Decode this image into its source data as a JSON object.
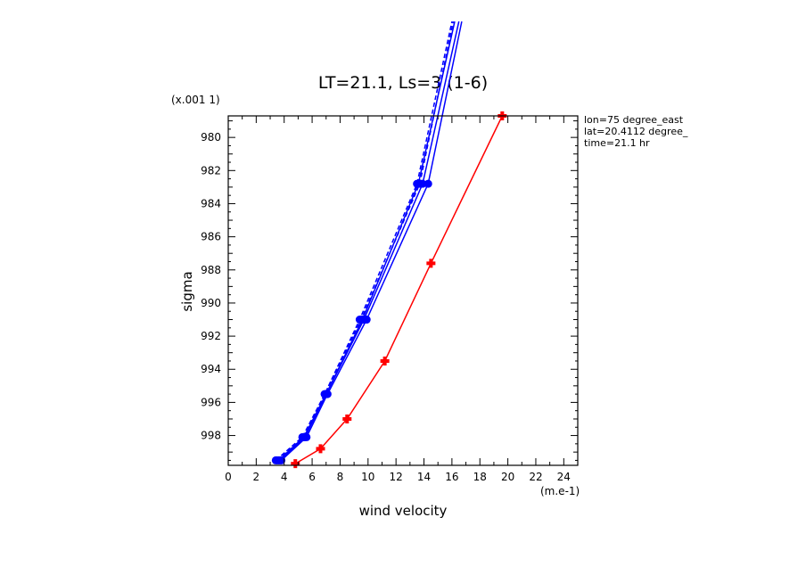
{
  "chart_data": {
    "type": "line",
    "title": "LT=21.1, Ls=3 (1-6)",
    "xlabel": "wind velocity",
    "ylabel": "sigma",
    "x_unit": "(m.e-1)",
    "y_unit": "(x.001 1)",
    "xlim": [
      0,
      25
    ],
    "ylim": [
      999.8,
      978.7
    ],
    "x_ticks": [
      "0",
      "2",
      "4",
      "6",
      "8",
      "10",
      "12",
      "14",
      "16",
      "18",
      "20",
      "22",
      "24"
    ],
    "y_ticks": [
      "980",
      "982",
      "984",
      "986",
      "988",
      "990",
      "992",
      "994",
      "996",
      "998"
    ],
    "grid": false,
    "info": [
      "lon=75 degree_east",
      "lat=20.4112 degree_",
      "time=21.1 hr"
    ],
    "series": [
      {
        "color": "#ff0000",
        "dash": "solid",
        "x": [
          4.8,
          6.6,
          8.5,
          11.2,
          14.5,
          19.6
        ],
        "y": [
          999.7,
          998.8,
          997.0,
          993.5,
          987.6,
          978.7
        ]
      },
      {
        "color": "#0000ff",
        "dash": "solid",
        "x": [
          3.8,
          5.6,
          7.1,
          9.9,
          14.3,
          16.7
        ],
        "y": [
          999.5,
          998.1,
          995.5,
          991.0,
          982.8,
          973.0
        ]
      },
      {
        "color": "#0000ff",
        "dash": "solid",
        "x": [
          3.6,
          5.4,
          7.0,
          9.6,
          13.6,
          16.2
        ],
        "y": [
          999.5,
          998.1,
          995.5,
          991.0,
          982.8,
          973.0
        ]
      },
      {
        "color": "#0000ff",
        "dash": "dashed",
        "x": [
          3.4,
          5.3,
          6.9,
          9.4,
          13.5,
          16.0
        ],
        "y": [
          999.5,
          998.1,
          995.5,
          991.0,
          982.8,
          973.0
        ]
      },
      {
        "color": "#0000ff",
        "dash": "dashed",
        "x": [
          3.5,
          5.4,
          6.9,
          9.5,
          13.7,
          16.1
        ],
        "y": [
          999.5,
          998.1,
          995.5,
          991.0,
          982.8,
          973.0
        ]
      },
      {
        "color": "#0000ff",
        "dash": "solid",
        "x": [
          3.7,
          5.5,
          7.0,
          9.7,
          13.9,
          16.5
        ],
        "y": [
          999.5,
          998.1,
          995.5,
          991.0,
          982.8,
          973.0
        ]
      }
    ]
  }
}
